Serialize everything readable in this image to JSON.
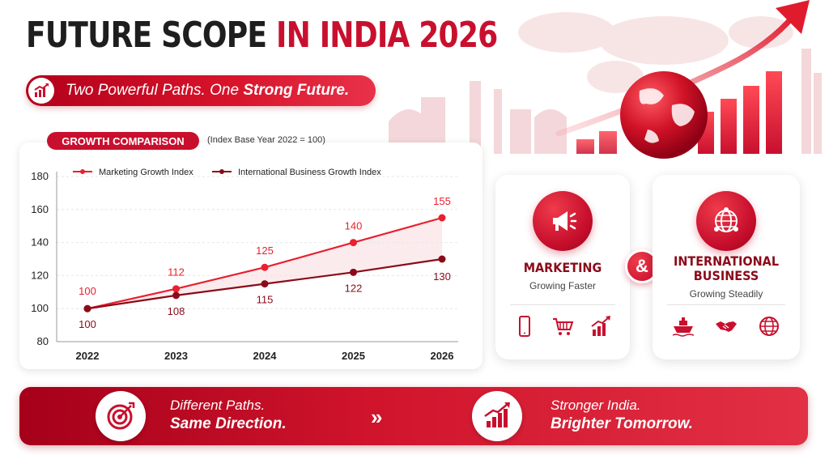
{
  "header": {
    "title_part1": "FUTURE SCOPE",
    "title_part2": "IN INDIA 2026",
    "tagline_regular": "Two Powerful Paths. One",
    "tagline_bold": "Strong Future."
  },
  "chart_section": {
    "pill_label": "GROWTH COMPARISON",
    "subtitle": "(Index Base Year 2022 = 100)"
  },
  "chart_data": {
    "type": "line",
    "title": "GROWTH COMPARISON",
    "subtitle": "(Index Base Year 2022 = 100)",
    "x": [
      "2022",
      "2023",
      "2024",
      "2025",
      "2026"
    ],
    "series": [
      {
        "name": "Marketing Growth Index",
        "values": [
          100,
          112,
          125,
          140,
          155
        ],
        "color": "#e8202f"
      },
      {
        "name": "International Business Growth Index",
        "values": [
          100,
          108,
          115,
          122,
          130
        ],
        "color": "#8b0a1a"
      }
    ],
    "ylim": [
      80,
      180
    ],
    "yticks": [
      80,
      100,
      120,
      140,
      160,
      180
    ],
    "grid": true,
    "legend": "top-left"
  },
  "cards": {
    "marketing": {
      "title": "MARKETING",
      "subtitle": "Growing Faster",
      "icons": [
        "smartphone-icon",
        "shopping-cart-icon",
        "growth-chart-icon"
      ]
    },
    "international": {
      "title_line1": "INTERNATIONAL",
      "title_line2": "BUSINESS",
      "subtitle": "Growing Steadily",
      "icons": [
        "ship-icon",
        "handshake-icon",
        "globe-icon"
      ]
    },
    "connector": "&"
  },
  "banner": {
    "left_line1": "Different Paths.",
    "left_line2": "Same Direction.",
    "right_line1": "Stronger India.",
    "right_line2": "Brighter Tomorrow.",
    "chevron": "»"
  },
  "colors": {
    "accent": "#c8102e",
    "dark_red": "#8b0a1a",
    "marketing_line": "#e8202f"
  }
}
